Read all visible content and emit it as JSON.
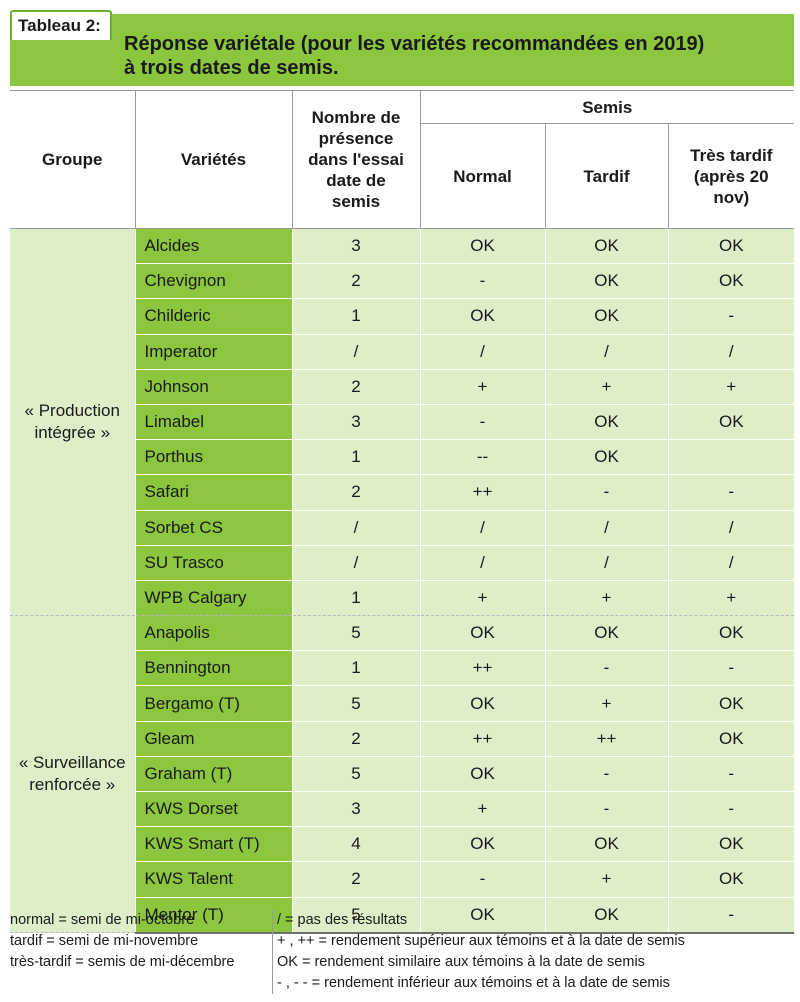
{
  "tag": "Tableau 2:",
  "title_line1": "Réponse variétale (pour les variétés recommandées en 2019)",
  "title_line2": "à trois dates de semis.",
  "headers": {
    "groupe": "Groupe",
    "varietes": "Variétés",
    "nombre_line1": "Nombre de",
    "nombre_line2": "présence",
    "nombre_line3": "dans l'essai",
    "nombre_line4": "date de",
    "nombre_line5": "semis",
    "semis": "Semis",
    "normal": "Normal",
    "tardif": "Tardif",
    "tres_tardif_line1": "Très tardif",
    "tres_tardif_line2": "(après 20",
    "tres_tardif_line3": "nov)"
  },
  "groups": [
    {
      "label_line1": "« Production",
      "label_line2": "intégrée »",
      "rows": [
        {
          "variete": "Alcides",
          "nombre": "3",
          "normal": "OK",
          "tardif": "OK",
          "tres_tardif": "OK"
        },
        {
          "variete": "Chevignon",
          "nombre": "2",
          "normal": "-",
          "tardif": "OK",
          "tres_tardif": "OK"
        },
        {
          "variete": "Childeric",
          "nombre": "1",
          "normal": "OK",
          "tardif": "OK",
          "tres_tardif": "-"
        },
        {
          "variete": "Imperator",
          "nombre": "/",
          "normal": "/",
          "tardif": "/",
          "tres_tardif": "/"
        },
        {
          "variete": "Johnson",
          "nombre": "2",
          "normal": "+",
          "tardif": "+",
          "tres_tardif": "+"
        },
        {
          "variete": "Limabel",
          "nombre": "3",
          "normal": "-",
          "tardif": "OK",
          "tres_tardif": "OK"
        },
        {
          "variete": "Porthus",
          "nombre": "1",
          "normal": "--",
          "tardif": "OK",
          "tres_tardif": ""
        },
        {
          "variete": "Safari",
          "nombre": "2",
          "normal": "++",
          "tardif": "-",
          "tres_tardif": "-"
        },
        {
          "variete": "Sorbet CS",
          "nombre": "/",
          "normal": "/",
          "tardif": "/",
          "tres_tardif": "/"
        },
        {
          "variete": "SU Trasco",
          "nombre": "/",
          "normal": "/",
          "tardif": "/",
          "tres_tardif": "/"
        },
        {
          "variete": "WPB Calgary",
          "nombre": "1",
          "normal": "+",
          "tardif": "+",
          "tres_tardif": "+"
        }
      ]
    },
    {
      "label_line1": "« Surveillance",
      "label_line2": "renforcée »",
      "rows": [
        {
          "variete": "Anapolis",
          "nombre": "5",
          "normal": "OK",
          "tardif": "OK",
          "tres_tardif": "OK"
        },
        {
          "variete": "Bennington",
          "nombre": "1",
          "normal": "++",
          "tardif": "-",
          "tres_tardif": "-"
        },
        {
          "variete": "Bergamo (T)",
          "nombre": "5",
          "normal": "OK",
          "tardif": "+",
          "tres_tardif": "OK"
        },
        {
          "variete": "Gleam",
          "nombre": "2",
          "normal": "++",
          "tardif": "++",
          "tres_tardif": "OK"
        },
        {
          "variete": "Graham (T)",
          "nombre": "5",
          "normal": "OK",
          "tardif": "-",
          "tres_tardif": "-"
        },
        {
          "variete": "KWS Dorset",
          "nombre": "3",
          "normal": "+",
          "tardif": "-",
          "tres_tardif": "-"
        },
        {
          "variete": "KWS Smart (T)",
          "nombre": "4",
          "normal": "OK",
          "tardif": "OK",
          "tres_tardif": "OK"
        },
        {
          "variete": "KWS Talent",
          "nombre": "2",
          "normal": "-",
          "tardif": "+",
          "tres_tardif": "OK"
        },
        {
          "variete": "Mentor (T)",
          "nombre": "5",
          "normal": "OK",
          "tardif": "OK",
          "tres_tardif": "-"
        }
      ]
    }
  ],
  "notes_left": [
    "normal = semi de mi-octobre",
    "tardif = semi de mi-novembre",
    "très-tardif = semis de mi-décembre"
  ],
  "notes_right": [
    "/ = pas des résultats",
    "+ , ++  =  rendement supérieur aux témoins et à la date de semis",
    "OK = rendement similaire  aux témoins à la date de semis",
    "- , - -  =  rendement inférieur aux témoins et à la date de semis"
  ],
  "colors": {
    "header_green": "#8cc63f",
    "variety_green": "#8cc63f",
    "cell_light_green": "#ddeec8"
  }
}
